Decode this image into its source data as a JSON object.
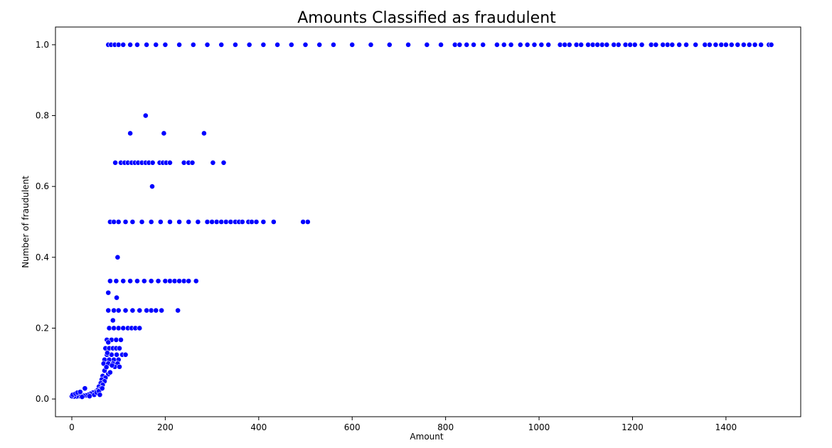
{
  "chart_data": {
    "type": "scatter",
    "title": "Amounts Classified as fraudulent",
    "xlabel": "Amount",
    "ylabel": "Number of fraudulent",
    "xlim": [
      -35,
      1560
    ],
    "ylim": [
      -0.05,
      1.05
    ],
    "xticks": [
      0,
      200,
      400,
      600,
      800,
      1000,
      1200,
      1400
    ],
    "xtick_labels": [
      "0",
      "200",
      "400",
      "600",
      "800",
      "1000",
      "1200",
      "1400"
    ],
    "yticks": [
      0.0,
      0.2,
      0.4,
      0.6,
      0.8,
      1.0
    ],
    "ytick_labels": [
      "0.0",
      "0.2",
      "0.4",
      "0.6",
      "0.8",
      "1.0"
    ],
    "grid": false,
    "marker_color": "#0000ff",
    "marker_edge_color": "#ffffff",
    "series": [
      {
        "points": [
          [
            78,
            1.0
          ],
          [
            84,
            1.0
          ],
          [
            92,
            1.0
          ],
          [
            100,
            1.0
          ],
          [
            110,
            1.0
          ],
          [
            125,
            1.0
          ],
          [
            140,
            1.0
          ],
          [
            160,
            1.0
          ],
          [
            180,
            1.0
          ],
          [
            200,
            1.0
          ],
          [
            230,
            1.0
          ],
          [
            260,
            1.0
          ],
          [
            290,
            1.0
          ],
          [
            320,
            1.0
          ],
          [
            350,
            1.0
          ],
          [
            380,
            1.0
          ],
          [
            410,
            1.0
          ],
          [
            440,
            1.0
          ],
          [
            470,
            1.0
          ],
          [
            500,
            1.0
          ],
          [
            530,
            1.0
          ],
          [
            560,
            1.0
          ],
          [
            600,
            1.0
          ],
          [
            640,
            1.0
          ],
          [
            680,
            1.0
          ],
          [
            720,
            1.0
          ],
          [
            760,
            1.0
          ],
          [
            790,
            1.0
          ],
          [
            820,
            1.0
          ],
          [
            830,
            1.0
          ],
          [
            845,
            1.0
          ],
          [
            860,
            1.0
          ],
          [
            880,
            1.0
          ],
          [
            910,
            1.0
          ],
          [
            925,
            1.0
          ],
          [
            940,
            1.0
          ],
          [
            960,
            1.0
          ],
          [
            975,
            1.0
          ],
          [
            990,
            1.0
          ],
          [
            1005,
            1.0
          ],
          [
            1020,
            1.0
          ],
          [
            1045,
            1.0
          ],
          [
            1055,
            1.0
          ],
          [
            1065,
            1.0
          ],
          [
            1080,
            1.0
          ],
          [
            1090,
            1.0
          ],
          [
            1105,
            1.0
          ],
          [
            1115,
            1.0
          ],
          [
            1125,
            1.0
          ],
          [
            1135,
            1.0
          ],
          [
            1145,
            1.0
          ],
          [
            1160,
            1.0
          ],
          [
            1170,
            1.0
          ],
          [
            1185,
            1.0
          ],
          [
            1195,
            1.0
          ],
          [
            1205,
            1.0
          ],
          [
            1220,
            1.0
          ],
          [
            1240,
            1.0
          ],
          [
            1250,
            1.0
          ],
          [
            1265,
            1.0
          ],
          [
            1275,
            1.0
          ],
          [
            1285,
            1.0
          ],
          [
            1300,
            1.0
          ],
          [
            1315,
            1.0
          ],
          [
            1335,
            1.0
          ],
          [
            1355,
            1.0
          ],
          [
            1365,
            1.0
          ],
          [
            1378,
            1.0
          ],
          [
            1390,
            1.0
          ],
          [
            1400,
            1.0
          ],
          [
            1412,
            1.0
          ],
          [
            1425,
            1.0
          ],
          [
            1438,
            1.0
          ],
          [
            1450,
            1.0
          ],
          [
            1462,
            1.0
          ],
          [
            1475,
            1.0
          ],
          [
            1492,
            1.0
          ],
          [
            1497,
            1.0
          ],
          [
            158,
            0.8
          ],
          [
            125,
            0.75
          ],
          [
            197,
            0.75
          ],
          [
            283,
            0.75
          ],
          [
            93,
            0.667
          ],
          [
            105,
            0.667
          ],
          [
            113,
            0.667
          ],
          [
            120,
            0.667
          ],
          [
            128,
            0.667
          ],
          [
            135,
            0.667
          ],
          [
            142,
            0.667
          ],
          [
            150,
            0.667
          ],
          [
            158,
            0.667
          ],
          [
            165,
            0.667
          ],
          [
            173,
            0.667
          ],
          [
            188,
            0.667
          ],
          [
            195,
            0.667
          ],
          [
            202,
            0.667
          ],
          [
            210,
            0.667
          ],
          [
            240,
            0.667
          ],
          [
            250,
            0.667
          ],
          [
            258,
            0.667
          ],
          [
            302,
            0.667
          ],
          [
            325,
            0.667
          ],
          [
            172,
            0.6
          ],
          [
            82,
            0.5
          ],
          [
            90,
            0.5
          ],
          [
            100,
            0.5
          ],
          [
            115,
            0.5
          ],
          [
            130,
            0.5
          ],
          [
            150,
            0.5
          ],
          [
            170,
            0.5
          ],
          [
            190,
            0.5
          ],
          [
            210,
            0.5
          ],
          [
            230,
            0.5
          ],
          [
            250,
            0.5
          ],
          [
            270,
            0.5
          ],
          [
            290,
            0.5
          ],
          [
            300,
            0.5
          ],
          [
            310,
            0.5
          ],
          [
            320,
            0.5
          ],
          [
            330,
            0.5
          ],
          [
            340,
            0.5
          ],
          [
            350,
            0.5
          ],
          [
            358,
            0.5
          ],
          [
            365,
            0.5
          ],
          [
            378,
            0.5
          ],
          [
            385,
            0.5
          ],
          [
            395,
            0.5
          ],
          [
            410,
            0.5
          ],
          [
            432,
            0.5
          ],
          [
            495,
            0.5
          ],
          [
            505,
            0.5
          ],
          [
            98,
            0.4
          ],
          [
            82,
            0.333
          ],
          [
            95,
            0.333
          ],
          [
            110,
            0.333
          ],
          [
            125,
            0.333
          ],
          [
            140,
            0.333
          ],
          [
            155,
            0.333
          ],
          [
            170,
            0.333
          ],
          [
            185,
            0.333
          ],
          [
            200,
            0.333
          ],
          [
            210,
            0.333
          ],
          [
            220,
            0.333
          ],
          [
            230,
            0.333
          ],
          [
            240,
            0.333
          ],
          [
            250,
            0.333
          ],
          [
            266,
            0.333
          ],
          [
            78,
            0.3
          ],
          [
            96,
            0.286
          ],
          [
            78,
            0.25
          ],
          [
            90,
            0.25
          ],
          [
            100,
            0.25
          ],
          [
            115,
            0.25
          ],
          [
            130,
            0.25
          ],
          [
            145,
            0.25
          ],
          [
            160,
            0.25
          ],
          [
            170,
            0.25
          ],
          [
            180,
            0.25
          ],
          [
            192,
            0.25
          ],
          [
            227,
            0.25
          ],
          [
            88,
            0.222
          ],
          [
            80,
            0.2
          ],
          [
            90,
            0.2
          ],
          [
            100,
            0.2
          ],
          [
            110,
            0.2
          ],
          [
            120,
            0.2
          ],
          [
            128,
            0.2
          ],
          [
            136,
            0.2
          ],
          [
            145,
            0.2
          ],
          [
            75,
            0.167
          ],
          [
            85,
            0.167
          ],
          [
            95,
            0.167
          ],
          [
            105,
            0.167
          ],
          [
            72,
            0.143
          ],
          [
            80,
            0.143
          ],
          [
            88,
            0.143
          ],
          [
            95,
            0.143
          ],
          [
            102,
            0.143
          ],
          [
            75,
            0.125
          ],
          [
            85,
            0.125
          ],
          [
            96,
            0.125
          ],
          [
            108,
            0.125
          ],
          [
            115,
            0.125
          ],
          [
            70,
            0.111
          ],
          [
            80,
            0.111
          ],
          [
            90,
            0.111
          ],
          [
            100,
            0.111
          ],
          [
            68,
            0.1
          ],
          [
            78,
            0.1
          ],
          [
            88,
            0.1
          ],
          [
            98,
            0.1
          ],
          [
            92,
            0.091
          ],
          [
            102,
            0.091
          ],
          [
            70,
            0.08
          ],
          [
            78,
            0.07
          ],
          [
            66,
            0.065
          ],
          [
            72,
            0.06
          ],
          [
            64,
            0.055
          ],
          [
            70,
            0.05
          ],
          [
            62,
            0.045
          ],
          [
            66,
            0.04
          ],
          [
            58,
            0.035
          ],
          [
            62,
            0.03
          ],
          [
            55,
            0.025
          ],
          [
            50,
            0.02
          ],
          [
            45,
            0.018
          ],
          [
            40,
            0.015
          ],
          [
            35,
            0.012
          ],
          [
            30,
            0.01
          ],
          [
            25,
            0.009
          ],
          [
            20,
            0.008
          ],
          [
            15,
            0.008
          ],
          [
            10,
            0.007
          ],
          [
            5,
            0.007
          ],
          [
            0,
            0.008
          ],
          [
            2,
            0.012
          ],
          [
            8,
            0.015
          ],
          [
            12,
            0.018
          ],
          [
            18,
            0.02
          ],
          [
            28,
            0.03
          ],
          [
            22,
            0.006
          ],
          [
            38,
            0.008
          ],
          [
            48,
            0.012
          ],
          [
            53,
            0.018
          ],
          [
            58,
            0.022
          ],
          [
            60,
            0.012
          ],
          [
            65,
            0.03
          ],
          [
            74,
            0.09
          ],
          [
            76,
            0.13
          ],
          [
            78,
            0.16
          ],
          [
            82,
            0.075
          ],
          [
            86,
            0.095
          ]
        ]
      }
    ]
  }
}
